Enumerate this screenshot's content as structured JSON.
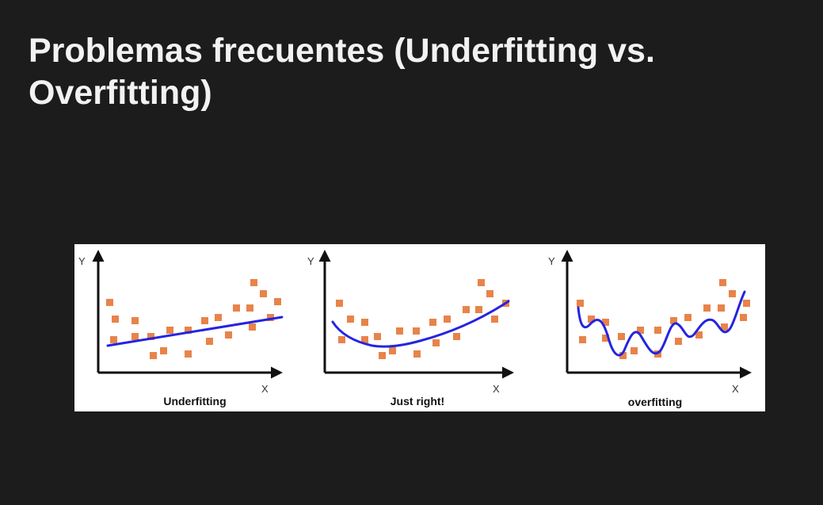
{
  "slide": {
    "title_line1": "Problemas frecuentes (Underfitting vs.",
    "title_line2": "Overfitting)"
  },
  "figure": {
    "axis_x_label": "X",
    "axis_y_label": "Y",
    "colors": {
      "points": "#e8834a",
      "curve": "#2424e0",
      "axes": "#111111"
    },
    "panels": [
      {
        "caption": "Underfitting",
        "fit": "linear"
      },
      {
        "caption": "Just right!",
        "fit": "quadratic"
      },
      {
        "caption": "overfitting",
        "fit": "wiggly"
      }
    ]
  }
}
